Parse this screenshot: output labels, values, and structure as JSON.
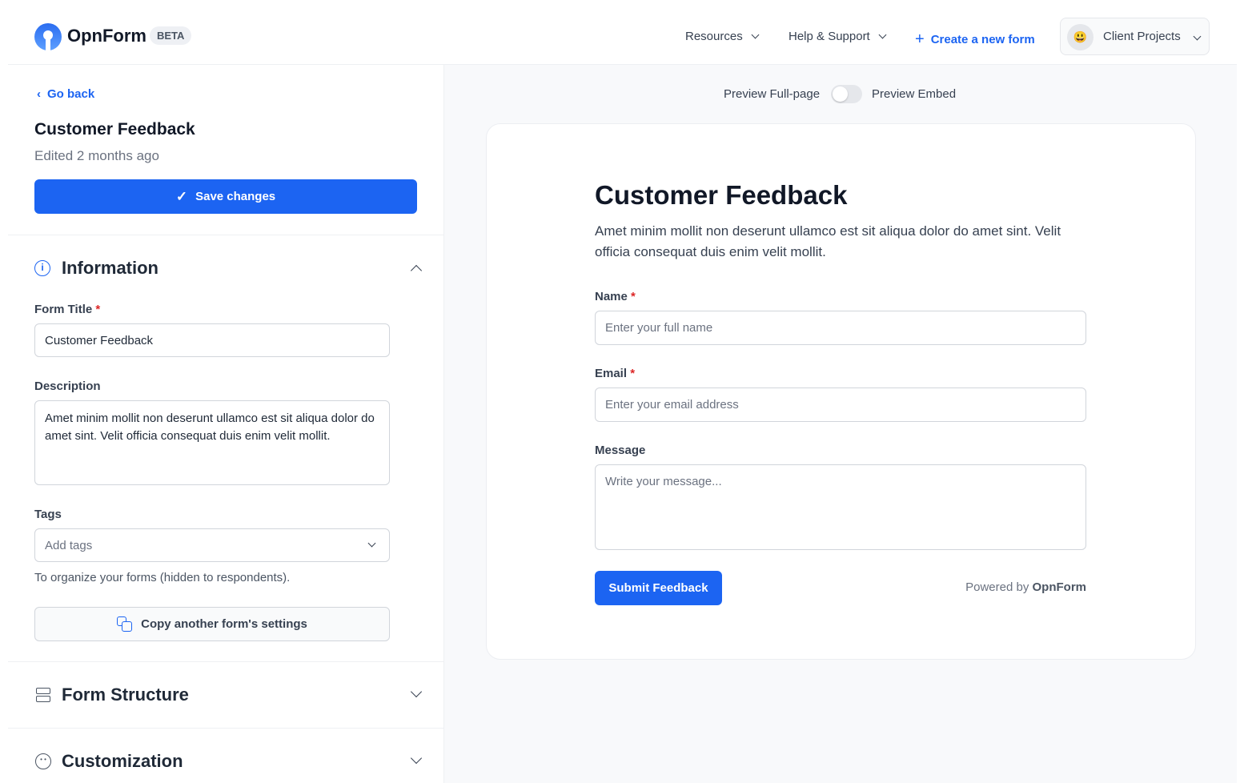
{
  "header": {
    "brand": "OpnForm",
    "badge": "BETA",
    "nav": [
      {
        "label": "Resources"
      },
      {
        "label": "Help & Support"
      }
    ],
    "create_label": "Create a new form",
    "workspace": "Client Projects",
    "workspace_emoji": "😃"
  },
  "sidebar": {
    "back": "Go back",
    "title": "Customer Feedback",
    "edited": "Edited 2 months ago",
    "save": "Save changes",
    "info": {
      "heading": "Information",
      "form_title_label": "Form Title",
      "form_title_value": "Customer Feedback",
      "description_label": "Description",
      "description_value": "Amet minim mollit non deserunt ullamco est sit aliqua dolor do amet sint. Velit officia consequat duis enim velit mollit.",
      "tags_label": "Tags",
      "tags_placeholder": "Add tags",
      "tags_help": "To organize your forms (hidden to respondents).",
      "copy": "Copy another form's settings"
    },
    "sections": [
      {
        "label": "Form Structure"
      },
      {
        "label": "Customization"
      }
    ]
  },
  "preview": {
    "full_page": "Preview Full-page",
    "embed": "Preview Embed",
    "embed_on": false,
    "title": "Customer Feedback",
    "description": "Amet minim mollit non deserunt ullamco est sit aliqua dolor do amet sint. Velit officia consequat duis enim velit mollit.",
    "fields": [
      {
        "label": "Name",
        "required": "*",
        "placeholder": "Enter your full name"
      },
      {
        "label": "Email",
        "required": "*",
        "placeholder": "Enter your email address"
      },
      {
        "label": "Message",
        "placeholder": "Write your message..."
      }
    ],
    "submit": "Submit Feedback",
    "powered_by": "Powered by",
    "powered_brand": "OpnForm"
  },
  "colors": {
    "accent": "#1c64f2",
    "required": "#dc2626"
  }
}
